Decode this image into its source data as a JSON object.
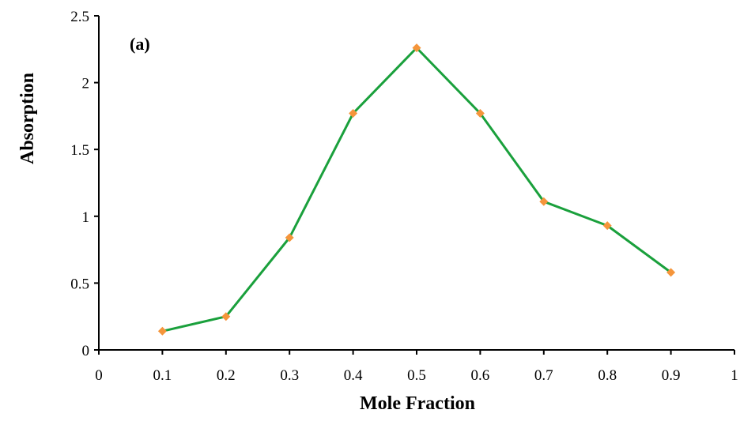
{
  "chart_data": {
    "type": "line",
    "title": "",
    "annotation": "(a)",
    "xlabel": "Mole Fraction",
    "ylabel": "Absorption",
    "xlim": [
      0,
      1
    ],
    "ylim": [
      0,
      2.5
    ],
    "x_ticks": [
      "0",
      "0.1",
      "0.2",
      "0.3",
      "0.4",
      "0.5",
      "0.6",
      "0.7",
      "0.8",
      "0.9",
      "1"
    ],
    "y_ticks": [
      "0",
      "0.5",
      "1",
      "1.5",
      "2",
      "2.5"
    ],
    "grid": false,
    "legend": "none",
    "series": [
      {
        "x": [
          0.1,
          0.2,
          0.3,
          0.4,
          0.5,
          0.6,
          0.7,
          0.8,
          0.9
        ],
        "y": [
          0.14,
          0.25,
          0.84,
          1.77,
          2.26,
          1.77,
          1.11,
          0.93,
          0.58
        ],
        "line_color": "#1aa03c",
        "marker_color": "#f5953b",
        "marker": "diamond"
      }
    ]
  }
}
